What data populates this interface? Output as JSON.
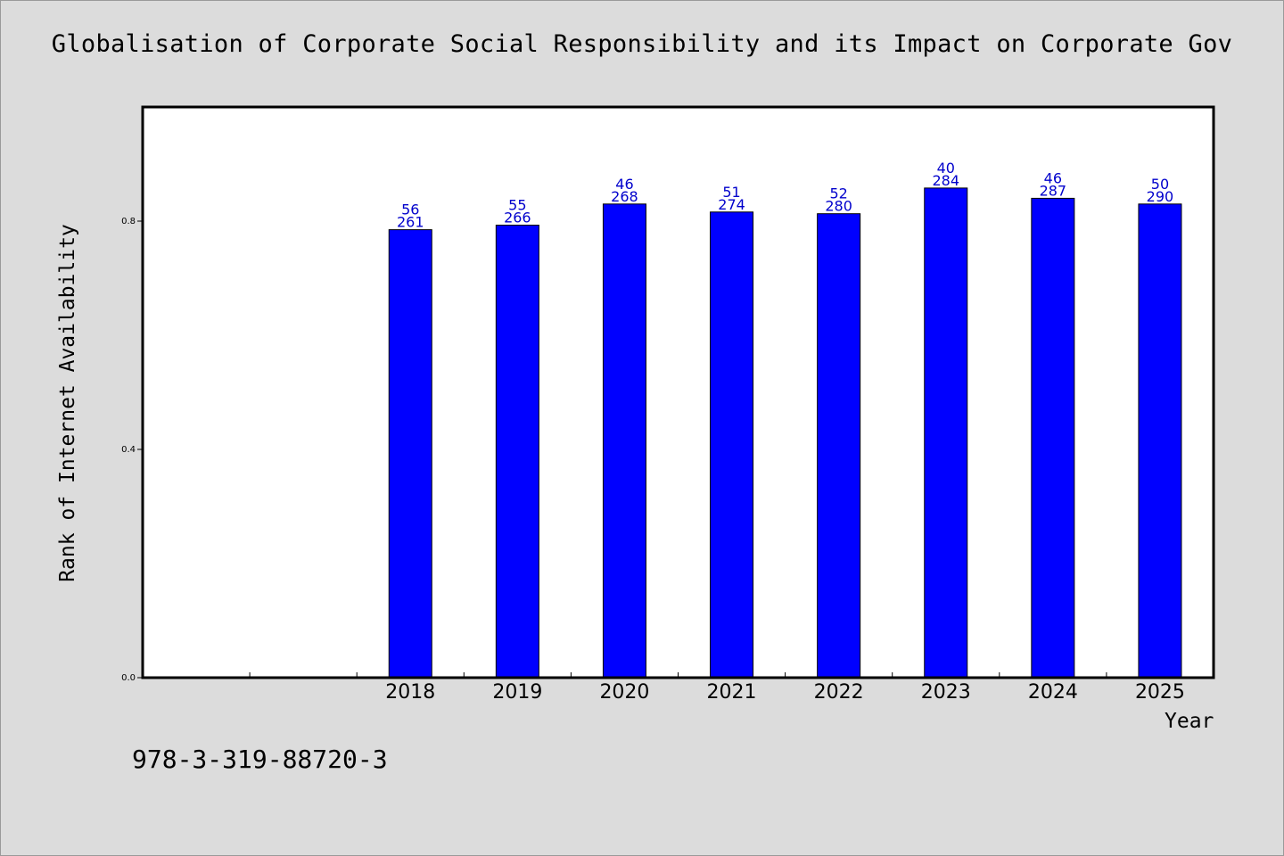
{
  "page": {
    "footer_text": "978-3-319-88720-3"
  },
  "colors": {
    "background": "#dcdcdc",
    "plot_background": "#ffffff",
    "bar_fill": "#0000ff",
    "label_color": "#0000cc",
    "axis_color": "#000000"
  },
  "chart_data": {
    "type": "bar",
    "title": "Globalisation of Corporate Social Responsibility and its Impact on Corporate Gov",
    "xlabel": "Year",
    "ylabel": "Rank of Internet Availability",
    "categories": [
      "",
      "",
      "2018",
      "2019",
      "2020",
      "2021",
      "2022",
      "2023",
      "2024",
      "2025"
    ],
    "values": [
      null,
      null,
      0.785,
      0.793,
      0.83,
      0.816,
      0.813,
      0.858,
      0.84,
      0.83
    ],
    "data_labels_top": [
      "",
      "",
      "56",
      "55",
      "46",
      "51",
      "52",
      "40",
      "46",
      "50"
    ],
    "data_labels_bottom": [
      "",
      "",
      "261",
      "266",
      "268",
      "274",
      "280",
      "284",
      "287",
      "290"
    ],
    "ylim": [
      0,
      1.0
    ],
    "yticks": [
      0.0,
      0.4,
      0.8
    ],
    "ytick_labels": [
      "0.0",
      "0.4",
      "0.8"
    ],
    "grid": false,
    "legend": "none"
  }
}
